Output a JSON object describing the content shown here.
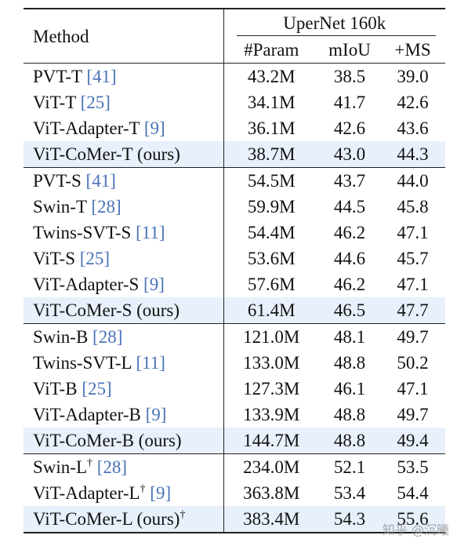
{
  "header": {
    "method": "Method",
    "group": "UperNet 160k",
    "columns": [
      "#Param",
      "mIoU",
      "+MS"
    ]
  },
  "groups": [
    [
      {
        "name": "PVT-T",
        "ref": "[41]",
        "param": "43.2M",
        "miou": "38.5",
        "ms": "39.0"
      },
      {
        "name": "ViT-T",
        "ref": "[25]",
        "param": "34.1M",
        "miou": "41.7",
        "ms": "42.6"
      },
      {
        "name": "ViT-Adapter-T",
        "ref": "[9]",
        "param": "36.1M",
        "miou": "42.6",
        "ms": "43.6"
      },
      {
        "name": "ViT-CoMer-T (ours)",
        "ref": "",
        "param": "38.7M",
        "miou": "43.0",
        "ms": "44.3",
        "highlight": true,
        "bold_miou": true,
        "bold_ms": true
      }
    ],
    [
      {
        "name": "PVT-S",
        "ref": "[41]",
        "param": "54.5M",
        "miou": "43.7",
        "ms": "44.0"
      },
      {
        "name": "Swin-T",
        "ref": "[28]",
        "param": "59.9M",
        "miou": "44.5",
        "ms": "45.8"
      },
      {
        "name": "Twins-SVT-S",
        "ref": "[11]",
        "param": "54.4M",
        "miou": "46.2",
        "ms": "47.1"
      },
      {
        "name": "ViT-S",
        "ref": "[25]",
        "param": "53.6M",
        "miou": "44.6",
        "ms": "45.7"
      },
      {
        "name": "ViT-Adapter-S",
        "ref": "[9]",
        "param": "57.6M",
        "miou": "46.2",
        "ms": "47.1"
      },
      {
        "name": "ViT-CoMer-S (ours)",
        "ref": "",
        "param": "61.4M",
        "miou": "46.5",
        "ms": "47.7",
        "highlight": true,
        "bold_miou": true,
        "bold_ms": true
      }
    ],
    [
      {
        "name": "Swin-B",
        "ref": "[28]",
        "param": "121.0M",
        "miou": "48.1",
        "ms": "49.7"
      },
      {
        "name": "Twins-SVT-L",
        "ref": "[11]",
        "param": "133.0M",
        "miou": "48.8",
        "ms": "50.2",
        "bold_miou": true,
        "bold_ms": true
      },
      {
        "name": "ViT-B",
        "ref": "[25]",
        "param": "127.3M",
        "miou": "46.1",
        "ms": "47.1"
      },
      {
        "name": "ViT-Adapter-B",
        "ref": "[9]",
        "param": "133.9M",
        "miou": "48.8",
        "ms": "49.7",
        "bold_miou": true
      },
      {
        "name": "ViT-CoMer-B (ours)",
        "ref": "",
        "param": "144.7M",
        "miou": "48.8",
        "ms": "49.4",
        "highlight": true,
        "bold_miou": true
      }
    ],
    [
      {
        "name": "Swin-L",
        "sup": "†",
        "ref": "[28]",
        "param": "234.0M",
        "miou": "52.1",
        "ms": "53.5"
      },
      {
        "name": "ViT-Adapter-L",
        "sup": "†",
        "ref": "[9]",
        "param": "363.8M",
        "miou": "53.4",
        "ms": "54.4"
      },
      {
        "name": "ViT-CoMer-L (ours)",
        "sup": "†",
        "ref": "",
        "param": "383.4M",
        "miou": "54.3",
        "ms": "55.6",
        "highlight": true,
        "bold_miou": true,
        "bold_ms": true
      }
    ]
  ],
  "watermark": "知乎 @沉曦"
}
